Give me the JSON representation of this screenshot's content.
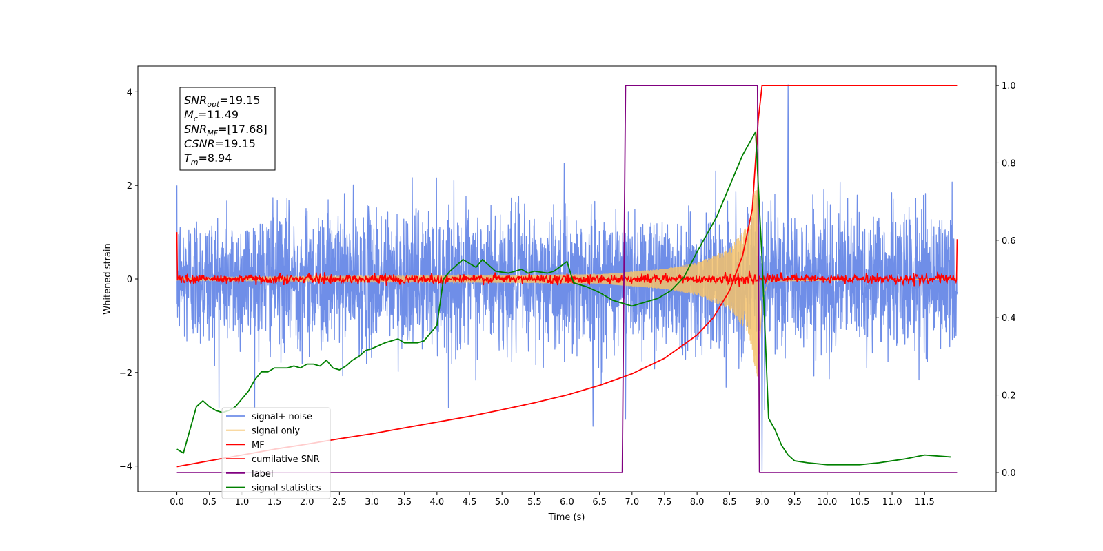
{
  "chart_data": {
    "type": "line",
    "xlabel": "Time (s)",
    "ylabel": "Whitened strain",
    "xlim": [
      -0.6,
      12.6
    ],
    "ylim": [
      -4.55,
      4.55
    ],
    "y2lim": [
      -0.05,
      1.05
    ],
    "x_ticks": [
      0.0,
      0.5,
      1.0,
      1.5,
      2.0,
      2.5,
      3.0,
      3.5,
      4.0,
      4.5,
      5.0,
      5.5,
      6.0,
      6.5,
      7.0,
      7.5,
      8.0,
      8.5,
      9.0,
      9.5,
      10.0,
      10.5,
      11.0,
      11.5
    ],
    "x_tick_labels": [
      "0.0",
      "0.5",
      "1.0",
      "1.5",
      "2.0",
      "2.5",
      "3.0",
      "3.5",
      "4.0",
      "4.5",
      "5.0",
      "5.5",
      "6.0",
      "6.5",
      "7.0",
      "7.5",
      "8.0",
      "8.5",
      "9.0",
      "9.5",
      "10.0",
      "10.5",
      "11.0",
      "11.5"
    ],
    "y_ticks": [
      -4,
      -2,
      0,
      2,
      4
    ],
    "y_tick_labels": [
      "−4",
      "−2",
      "0",
      "2",
      "4"
    ],
    "y2_ticks": [
      0.0,
      0.2,
      0.4,
      0.6,
      0.8,
      1.0
    ],
    "y2_tick_labels": [
      "0.0",
      "0.2",
      "0.4",
      "0.6",
      "0.8",
      "1.0"
    ],
    "grid": false,
    "legend_position": "lower-left",
    "annotation": [
      {
        "base": "SNR",
        "sub": "opt",
        "rest": "=19.15"
      },
      {
        "base": "M",
        "sub": "c",
        "rest": "=11.49"
      },
      {
        "base": "SNR",
        "sub": "MF",
        "rest": "=[17.68]"
      },
      {
        "base": "CSNR",
        "sub": "",
        "rest": "=19.15"
      },
      {
        "base": "T",
        "sub": "m",
        "rest": "=8.94"
      }
    ],
    "series": [
      {
        "name": "signal+ noise",
        "color": "#6f8ee8",
        "axis": "left",
        "kind": "noise",
        "x_range": [
          0.0,
          12.0
        ],
        "std": 0.72,
        "spikes": [
          [
            9.4,
            4.15
          ],
          [
            9.0,
            -4.1
          ],
          [
            6.9,
            -3.0
          ],
          [
            6.4,
            -3.15
          ],
          [
            9.04,
            -2.8
          ]
        ]
      },
      {
        "name": "signal only",
        "color": "#f5c26b",
        "axis": "left",
        "kind": "chirp",
        "x_range": [
          0.0,
          12.0
        ],
        "merger_time": 8.94,
        "envelope": [
          [
            0.0,
            0.03
          ],
          [
            6.5,
            0.1
          ],
          [
            7.5,
            0.22
          ],
          [
            8.0,
            0.35
          ],
          [
            8.5,
            0.65
          ],
          [
            8.8,
            1.2
          ],
          [
            8.94,
            2.25
          ],
          [
            9.0,
            0.5
          ],
          [
            9.1,
            0.05
          ],
          [
            12.0,
            0.0
          ]
        ]
      },
      {
        "name": "MF",
        "color": "#ff0000",
        "axis": "left",
        "kind": "matched-filter",
        "x_range": [
          0.0,
          12.0
        ],
        "std": 0.05,
        "edge_values": [
          [
            0.0,
            1.0
          ],
          [
            12.0,
            0.85
          ]
        ]
      },
      {
        "name": "cumilative SNR",
        "color": "#ff0000",
        "axis": "right",
        "x": [
          0.0,
          0.5,
          1.0,
          1.5,
          2.0,
          2.5,
          3.0,
          3.5,
          4.0,
          4.5,
          5.0,
          5.5,
          6.0,
          6.5,
          7.0,
          7.5,
          8.0,
          8.25,
          8.5,
          8.7,
          8.85,
          8.94,
          9.0,
          10.0,
          11.0,
          12.0
        ],
        "y": [
          0.015,
          0.03,
          0.045,
          0.06,
          0.073,
          0.087,
          0.1,
          0.115,
          0.13,
          0.145,
          0.162,
          0.18,
          0.2,
          0.225,
          0.255,
          0.295,
          0.355,
          0.4,
          0.47,
          0.56,
          0.68,
          0.91,
          1.0,
          1.0,
          1.0,
          1.0
        ]
      },
      {
        "name": "label",
        "color": "#800080",
        "axis": "right",
        "x": [
          0.0,
          6.85,
          6.9,
          8.93,
          8.96,
          12.0
        ],
        "y": [
          0.0,
          0.0,
          1.0,
          1.0,
          0.0,
          0.0
        ]
      },
      {
        "name": "signal statistics",
        "color": "#008000",
        "axis": "right",
        "x": [
          0.0,
          0.1,
          0.3,
          0.4,
          0.5,
          0.6,
          0.7,
          0.8,
          0.9,
          1.0,
          1.1,
          1.2,
          1.3,
          1.4,
          1.5,
          1.7,
          1.8,
          1.9,
          2.0,
          2.1,
          2.2,
          2.3,
          2.4,
          2.5,
          2.6,
          2.7,
          2.8,
          2.9,
          3.0,
          3.2,
          3.3,
          3.4,
          3.5,
          3.7,
          3.8,
          3.9,
          4.0,
          4.1,
          4.2,
          4.4,
          4.6,
          4.7,
          4.9,
          5.1,
          5.3,
          5.4,
          5.5,
          5.7,
          5.8,
          6.0,
          6.1,
          6.3,
          6.5,
          6.7,
          7.0,
          7.2,
          7.4,
          7.6,
          7.8,
          8.0,
          8.1,
          8.3,
          8.4,
          8.5,
          8.6,
          8.7,
          8.8,
          8.9,
          9.0,
          9.1,
          9.2,
          9.3,
          9.4,
          9.5,
          9.7,
          10.0,
          10.5,
          10.8,
          11.0,
          11.2,
          11.5,
          11.9
        ],
        "y": [
          0.06,
          0.05,
          0.17,
          0.185,
          0.17,
          0.16,
          0.155,
          0.16,
          0.17,
          0.19,
          0.21,
          0.24,
          0.26,
          0.26,
          0.27,
          0.27,
          0.275,
          0.27,
          0.28,
          0.28,
          0.275,
          0.29,
          0.27,
          0.265,
          0.275,
          0.29,
          0.3,
          0.315,
          0.32,
          0.335,
          0.34,
          0.345,
          0.335,
          0.335,
          0.34,
          0.36,
          0.38,
          0.5,
          0.52,
          0.55,
          0.53,
          0.55,
          0.52,
          0.515,
          0.525,
          0.515,
          0.52,
          0.515,
          0.52,
          0.545,
          0.49,
          0.48,
          0.465,
          0.445,
          0.43,
          0.44,
          0.45,
          0.47,
          0.505,
          0.57,
          0.6,
          0.66,
          0.7,
          0.74,
          0.78,
          0.82,
          0.85,
          0.88,
          0.55,
          0.14,
          0.11,
          0.07,
          0.045,
          0.03,
          0.025,
          0.02,
          0.02,
          0.025,
          0.03,
          0.035,
          0.045,
          0.04
        ]
      }
    ]
  }
}
